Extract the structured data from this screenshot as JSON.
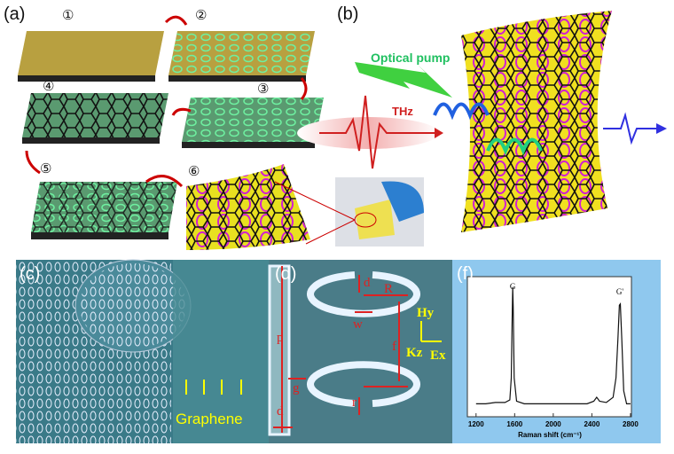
{
  "panels": {
    "a": {
      "label": "(a)",
      "steps": [
        "①",
        "②",
        "③",
        "④",
        "⑤",
        "⑥"
      ]
    },
    "b": {
      "label": "(b)",
      "pump": "Optical pump",
      "thz": "THz"
    },
    "c": {
      "label": "(c)",
      "graphene": "Graphene"
    },
    "d": {
      "label": "(d)",
      "p": "p",
      "d_top": "d",
      "R": "R",
      "w": "w",
      "f": "f",
      "g": "g",
      "r": "r",
      "d_bottom": "d",
      "Hy": "Hy",
      "Kz": "Kz",
      "Ex": "Ex"
    }
  },
  "chart_data": {
    "type": "line",
    "label": "(f)",
    "x_label": "Raman shift (cm⁻¹)",
    "peak_labels": [
      "G",
      "G'"
    ],
    "x": [
      1200,
      1300,
      1400,
      1500,
      1550,
      1565,
      1575,
      1580,
      1585,
      1595,
      1620,
      1700,
      1850,
      2000,
      2200,
      2350,
      2420,
      2450,
      2480,
      2550,
      2620,
      2650,
      2670,
      2685,
      2695,
      2710,
      2730,
      2760,
      2800
    ],
    "series": [
      {
        "color": "#111111",
        "values": [
          0.1,
          0.1,
          0.11,
          0.11,
          0.13,
          0.3,
          0.8,
          1.0,
          0.85,
          0.3,
          0.12,
          0.1,
          0.1,
          0.1,
          0.1,
          0.1,
          0.12,
          0.15,
          0.12,
          0.11,
          0.15,
          0.3,
          0.6,
          0.86,
          0.87,
          0.6,
          0.2,
          0.1,
          0.1
        ]
      }
    ],
    "xlim": [
      1110,
      2810
    ],
    "ylim": [
      0,
      1.08
    ],
    "xticks": [
      1200,
      1600,
      2000,
      2400,
      2800
    ]
  }
}
